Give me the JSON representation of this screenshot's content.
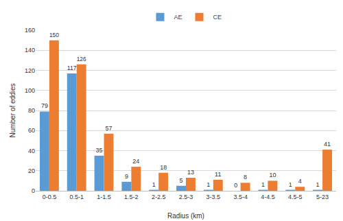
{
  "chart_data": {
    "type": "bar",
    "x_label": "Radius (km)",
    "y_label": "Number of eddies",
    "categories": [
      "0-0.5",
      "0.5-1",
      "1-1.5",
      "1.5-2",
      "2-2.5",
      "2.5-3",
      "3-3.5",
      "3.5-4",
      "4-4.5",
      "4.5-5",
      "5-23"
    ],
    "series": [
      {
        "name": "AE",
        "color": "#5b9bd5",
        "values": [
          79,
          117,
          35,
          9,
          1,
          5,
          1,
          0,
          1,
          1,
          1
        ]
      },
      {
        "name": "CE",
        "color": "#ed7d31",
        "values": [
          150,
          126,
          57,
          24,
          18,
          13,
          11,
          8,
          10,
          4,
          41
        ]
      }
    ],
    "ylim": [
      0,
      160
    ],
    "yticks": [
      0,
      20,
      40,
      60,
      80,
      100,
      120,
      140,
      160
    ],
    "grid": true,
    "legend": "top",
    "data_labels": true
  }
}
